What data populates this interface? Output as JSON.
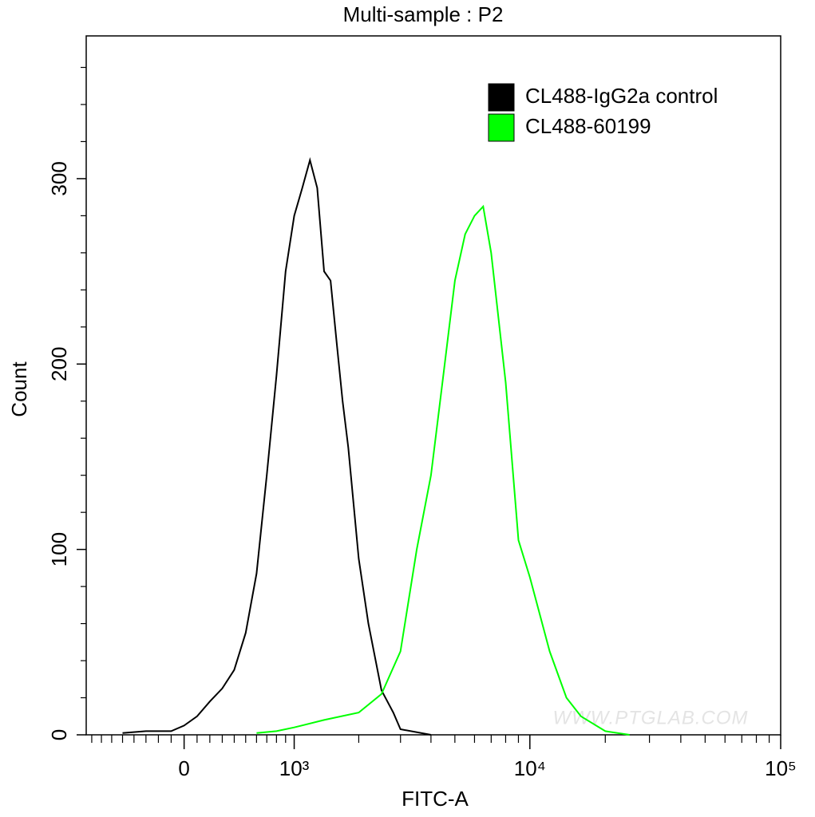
{
  "chart_data": {
    "type": "histogram-overlay",
    "title": "Multi-sample : P2",
    "xlabel": "FITC-A",
    "ylabel": "Count",
    "watermark": "WWW.PTGLAB.COM",
    "xscale": "biexponential",
    "xlim": [
      -860,
      100000
    ],
    "xticks": [
      0,
      {
        "value": 1000,
        "label": "10³"
      },
      {
        "value": 10000,
        "label": "10⁴"
      },
      {
        "value": 100000,
        "label": "10⁵"
      }
    ],
    "xminorticks": [
      -800,
      -700,
      -600,
      -500,
      -400,
      -300,
      -200,
      -100,
      100,
      200,
      300,
      400,
      500,
      600,
      700,
      800,
      900,
      2000,
      3000,
      4000,
      5000,
      6000,
      7000,
      8000,
      9000,
      20000,
      30000,
      40000,
      50000,
      60000,
      70000,
      80000,
      90000
    ],
    "ylim": [
      0,
      377
    ],
    "yticks": [
      0,
      100,
      200,
      300
    ],
    "yminorticks": [
      20,
      40,
      60,
      80,
      120,
      140,
      160,
      180,
      220,
      240,
      260,
      280,
      320,
      340,
      360
    ],
    "legend": "top-right",
    "series": [
      {
        "name": "CL488-IgG2a control",
        "color": "#000000",
        "x": [
          -500,
          -300,
          -100,
          0,
          100,
          200,
          300,
          400,
          500,
          600,
          700,
          800,
          900,
          1000,
          1100,
          1200,
          1300,
          1400,
          1500,
          1600,
          1700,
          1800,
          2000,
          2200,
          2500,
          2800,
          3000,
          4000
        ],
        "values": [
          1,
          2,
          2,
          5,
          10,
          18,
          25,
          35,
          55,
          87,
          140,
          194,
          250,
          280,
          295,
          310,
          295,
          250,
          245,
          211,
          180,
          155,
          95,
          60,
          24,
          12,
          3,
          0
        ]
      },
      {
        "name": "CL488-60199",
        "color": "#00ff00",
        "x": [
          600,
          800,
          1000,
          1400,
          2000,
          2500,
          3000,
          3500,
          4000,
          4500,
          5000,
          5500,
          6000,
          6500,
          7000,
          8000,
          9000,
          10000,
          12000,
          14000,
          16000,
          20000,
          25000
        ],
        "values": [
          1,
          2,
          4,
          8,
          12,
          22,
          45,
          100,
          140,
          195,
          245,
          270,
          280,
          285,
          260,
          190,
          105,
          85,
          45,
          20,
          10,
          2,
          0
        ]
      }
    ]
  }
}
